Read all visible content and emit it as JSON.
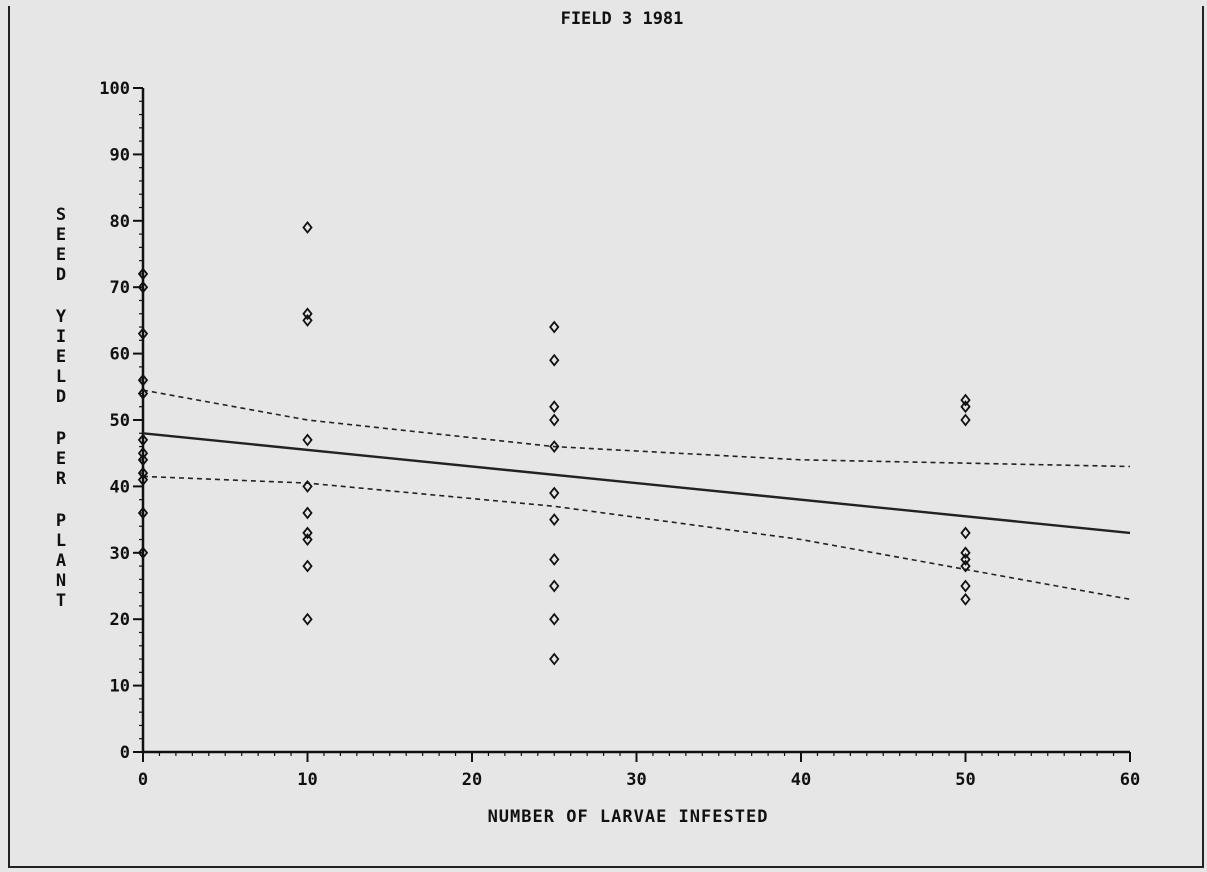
{
  "chart_data": {
    "type": "scatter",
    "title": "FIELD 3 1981",
    "xlabel": "NUMBER OF LARVAE INFESTED",
    "ylabel": "SEED YIELD PER PLANT",
    "xlim": [
      0,
      60
    ],
    "ylim": [
      0,
      100
    ],
    "x_ticks": [
      0,
      10,
      20,
      30,
      40,
      50,
      60
    ],
    "y_ticks": [
      0,
      10,
      20,
      30,
      40,
      50,
      60,
      70,
      80,
      90,
      100
    ],
    "grid": false,
    "legend": "none",
    "points": [
      {
        "x": 0,
        "y": 72
      },
      {
        "x": 0,
        "y": 70
      },
      {
        "x": 0,
        "y": 63
      },
      {
        "x": 0,
        "y": 56
      },
      {
        "x": 0,
        "y": 54
      },
      {
        "x": 0,
        "y": 47
      },
      {
        "x": 0,
        "y": 45
      },
      {
        "x": 0,
        "y": 44
      },
      {
        "x": 0,
        "y": 42
      },
      {
        "x": 0,
        "y": 41
      },
      {
        "x": 0,
        "y": 36
      },
      {
        "x": 0,
        "y": 30
      },
      {
        "x": 10,
        "y": 79
      },
      {
        "x": 10,
        "y": 66
      },
      {
        "x": 10,
        "y": 65
      },
      {
        "x": 10,
        "y": 47
      },
      {
        "x": 10,
        "y": 40
      },
      {
        "x": 10,
        "y": 36
      },
      {
        "x": 10,
        "y": 33
      },
      {
        "x": 10,
        "y": 32
      },
      {
        "x": 10,
        "y": 28
      },
      {
        "x": 10,
        "y": 20
      },
      {
        "x": 25,
        "y": 64
      },
      {
        "x": 25,
        "y": 59
      },
      {
        "x": 25,
        "y": 52
      },
      {
        "x": 25,
        "y": 50
      },
      {
        "x": 25,
        "y": 46
      },
      {
        "x": 25,
        "y": 39
      },
      {
        "x": 25,
        "y": 35
      },
      {
        "x": 25,
        "y": 29
      },
      {
        "x": 25,
        "y": 25
      },
      {
        "x": 25,
        "y": 20
      },
      {
        "x": 25,
        "y": 14
      },
      {
        "x": 50,
        "y": 53
      },
      {
        "x": 50,
        "y": 52
      },
      {
        "x": 50,
        "y": 50
      },
      {
        "x": 50,
        "y": 33
      },
      {
        "x": 50,
        "y": 30
      },
      {
        "x": 50,
        "y": 29
      },
      {
        "x": 50,
        "y": 28
      },
      {
        "x": 50,
        "y": 25
      },
      {
        "x": 50,
        "y": 23
      }
    ],
    "lines": [
      {
        "style": "solid",
        "x": [
          0,
          60
        ],
        "y": [
          48,
          33
        ]
      },
      {
        "style": "dashed",
        "x": [
          0,
          10,
          25,
          40,
          60
        ],
        "y": [
          54.5,
          50,
          46,
          44,
          43
        ]
      },
      {
        "style": "dashed",
        "x": [
          0,
          10,
          25,
          40,
          50,
          60
        ],
        "y": [
          41.5,
          40.5,
          37,
          32,
          27.5,
          23
        ]
      }
    ]
  }
}
